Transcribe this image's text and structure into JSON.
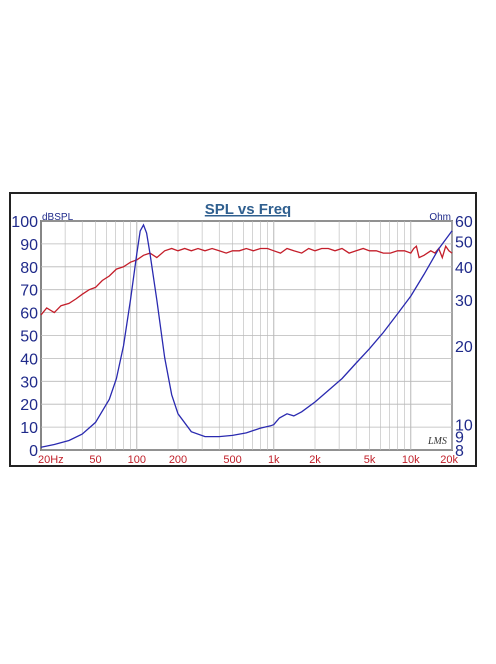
{
  "chart_data": {
    "type": "line",
    "title": "SPL vs Freq",
    "left_unit": "dBSPL",
    "right_unit": "Ohm",
    "logo": "LMS",
    "x_scale": "log",
    "xlim": [
      20,
      20000
    ],
    "ylim_left": [
      0,
      100
    ],
    "ylim_right": [
      8,
      60
    ],
    "grid": true,
    "x_ticks": [
      {
        "value": 20,
        "label": "20Hz"
      },
      {
        "value": 50,
        "label": "50"
      },
      {
        "value": 100,
        "label": "100"
      },
      {
        "value": 200,
        "label": "200"
      },
      {
        "value": 500,
        "label": "500"
      },
      {
        "value": 1000,
        "label": "1k"
      },
      {
        "value": 2000,
        "label": "2k"
      },
      {
        "value": 5000,
        "label": "5k"
      },
      {
        "value": 10000,
        "label": "10k"
      },
      {
        "value": 20000,
        "label": "20k"
      }
    ],
    "left_ticks": [
      "0",
      "10",
      "20",
      "30",
      "40",
      "50",
      "60",
      "70",
      "80",
      "90",
      "100"
    ],
    "right_ticks": [
      {
        "value": 8,
        "label": "8"
      },
      {
        "value": 9,
        "label": "9"
      },
      {
        "value": 10,
        "label": "10"
      },
      {
        "value": 20,
        "label": "20"
      },
      {
        "value": 30,
        "label": "30"
      },
      {
        "value": 40,
        "label": "40"
      },
      {
        "value": 50,
        "label": "50"
      },
      {
        "value": 60,
        "label": "60"
      }
    ],
    "colors": {
      "spl": "#c41e2a",
      "impedance": "#2a2ab0",
      "frame": "#222222",
      "grid": "#b8b8b8"
    },
    "series": [
      {
        "axis": "left",
        "x": [
          20,
          22,
          25,
          28,
          32,
          36,
          40,
          45,
          50,
          56,
          63,
          71,
          80,
          90,
          100,
          112,
          125,
          140,
          160,
          180,
          200,
          224,
          250,
          280,
          315,
          355,
          400,
          450,
          500,
          560,
          630,
          710,
          800,
          900,
          1000,
          1120,
          1250,
          1400,
          1600,
          1800,
          2000,
          2240,
          2500,
          2800,
          3150,
          3550,
          4000,
          4500,
          5000,
          5600,
          6300,
          7100,
          8000,
          9000,
          10000,
          10500,
          11000,
          11500,
          12500,
          14000,
          15000,
          16000,
          17000,
          18000,
          19000,
          20000
        ],
        "y": [
          59,
          62,
          60,
          63,
          64,
          66,
          68,
          70,
          71,
          74,
          76,
          79,
          80,
          82,
          83,
          85,
          86,
          84,
          87,
          88,
          87,
          88,
          87,
          88,
          87,
          88,
          87,
          86,
          87,
          87,
          88,
          87,
          88,
          88,
          87,
          86,
          88,
          87,
          86,
          88,
          87,
          88,
          88,
          87,
          88,
          86,
          87,
          88,
          87,
          87,
          86,
          86,
          87,
          87,
          86,
          88,
          89,
          84,
          85,
          87,
          86,
          88,
          84,
          89,
          87,
          86
        ]
      },
      {
        "axis": "right",
        "x": [
          20,
          25,
          32,
          40,
          50,
          63,
          71,
          80,
          90,
          100,
          106,
          112,
          118,
          125,
          140,
          160,
          180,
          200,
          250,
          315,
          400,
          500,
          630,
          800,
          950,
          1000,
          1100,
          1250,
          1400,
          1600,
          2000,
          2500,
          3150,
          4000,
          5000,
          6300,
          8000,
          10000,
          12500,
          16000,
          20000
        ],
        "y": [
          8.2,
          8.4,
          8.7,
          9.2,
          10.2,
          12.5,
          15,
          20,
          30,
          45,
          55,
          58,
          54,
          45,
          30,
          18,
          13,
          11,
          9.4,
          9.0,
          9.0,
          9.1,
          9.3,
          9.7,
          9.9,
          10.0,
          10.6,
          11.0,
          10.8,
          11.2,
          12.2,
          13.5,
          15,
          17.2,
          19.5,
          22.5,
          26.5,
          31,
          37.5,
          47,
          55
        ]
      }
    ]
  }
}
